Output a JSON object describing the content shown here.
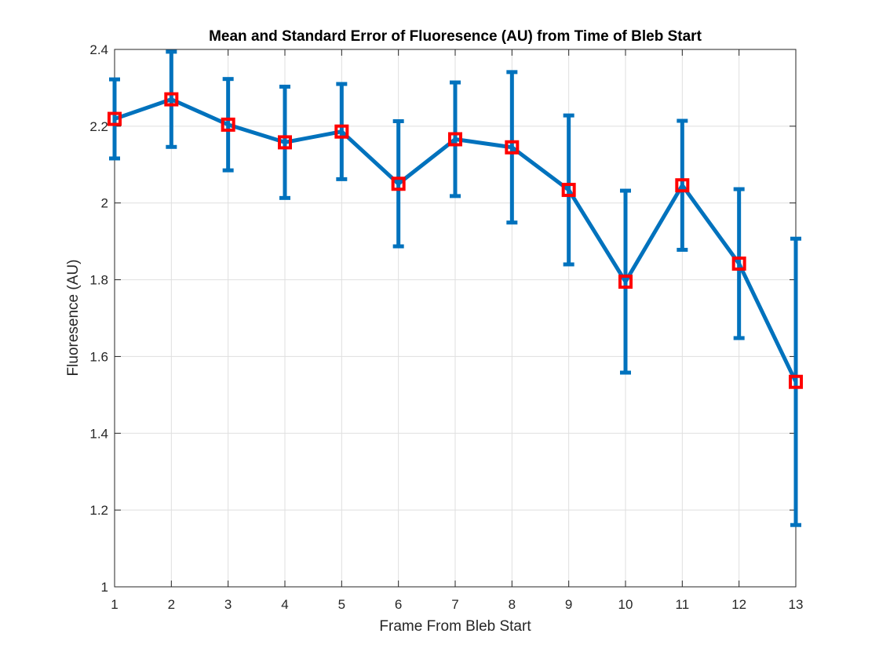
{
  "chart_data": {
    "type": "line",
    "title": "Mean and Standard Error of Fluoresence (AU) from Time of Bleb Start",
    "xlabel": "Frame From Bleb Start",
    "ylabel": "Fluoresence (AU)",
    "xlim": [
      1,
      13
    ],
    "ylim": [
      1,
      2.4
    ],
    "xticks": [
      1,
      2,
      3,
      4,
      5,
      6,
      7,
      8,
      9,
      10,
      11,
      12,
      13
    ],
    "yticks": [
      1,
      1.2,
      1.4,
      1.6,
      1.8,
      2,
      2.2,
      2.4
    ],
    "xtick_labels": [
      "1",
      "2",
      "3",
      "4",
      "5",
      "6",
      "7",
      "8",
      "9",
      "10",
      "11",
      "12",
      "13"
    ],
    "ytick_labels": [
      "1",
      "1.2",
      "1.4",
      "1.6",
      "1.8",
      "2",
      "2.2",
      "2.4"
    ],
    "grid": true,
    "series": [
      {
        "x": [
          1,
          2,
          3,
          4,
          5,
          6,
          7,
          8,
          9,
          10,
          11,
          12,
          13
        ],
        "y": [
          2.219,
          2.27,
          2.204,
          2.158,
          2.186,
          2.05,
          2.166,
          2.145,
          2.034,
          1.795,
          2.046,
          1.842,
          1.534
        ],
        "error": [
          0.103,
          0.124,
          0.119,
          0.145,
          0.124,
          0.163,
          0.148,
          0.196,
          0.194,
          0.237,
          0.168,
          0.194,
          0.373
        ],
        "line_color": "#0072BD",
        "marker": "square",
        "marker_color": "#FF0000"
      }
    ]
  }
}
